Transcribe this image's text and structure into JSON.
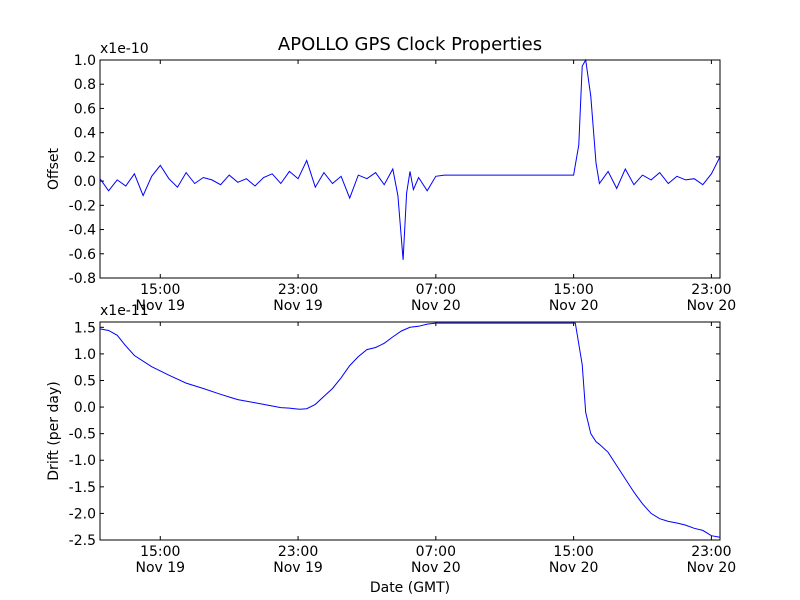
{
  "figure": {
    "title": "APOLLO GPS Clock Properties",
    "xlabel": "Date (GMT)"
  },
  "colors": {
    "line": "#0000ff",
    "axes": "#000000",
    "background": "#ffffff"
  },
  "chart_data": [
    {
      "type": "line",
      "title": "APOLLO GPS Clock Properties",
      "ylabel": "Offset",
      "multiplier": "x1e-10",
      "xlabel": "",
      "x_unit": "hours since Nov 19 11:30 GMT",
      "xlim": [
        0,
        36
      ],
      "ylim": [
        -0.8,
        1.0
      ],
      "grid": false,
      "x_ticks": [
        {
          "x": 3.5,
          "time": "15:00",
          "date": "Nov 19"
        },
        {
          "x": 11.5,
          "time": "23:00",
          "date": "Nov 19"
        },
        {
          "x": 19.5,
          "time": "07:00",
          "date": "Nov 20"
        },
        {
          "x": 27.5,
          "time": "15:00",
          "date": "Nov 20"
        },
        {
          "x": 35.5,
          "time": "23:00",
          "date": "Nov 20"
        }
      ],
      "y_ticks": [
        "1.0",
        "0.8",
        "0.6",
        "0.4",
        "0.2",
        "0.0",
        "-0.2",
        "-0.4",
        "-0.6",
        "-0.8"
      ],
      "y_tick_values": [
        1.0,
        0.8,
        0.6,
        0.4,
        0.2,
        0.0,
        -0.2,
        -0.4,
        -0.6,
        -0.8
      ],
      "series": [
        {
          "color": "#0000ff",
          "x": [
            0,
            0.5,
            1.0,
            1.5,
            2.0,
            2.5,
            3.0,
            3.5,
            4.0,
            4.5,
            5.0,
            5.5,
            6.0,
            6.5,
            7.0,
            7.5,
            8.0,
            8.5,
            9.0,
            9.5,
            10.0,
            10.5,
            11.0,
            11.5,
            12.0,
            12.5,
            13.0,
            13.5,
            14.0,
            14.5,
            15.0,
            15.5,
            16.0,
            16.5,
            17.0,
            17.3,
            17.6,
            17.8,
            18.0,
            18.2,
            18.5,
            19.0,
            19.5,
            20.0,
            20.3,
            20.5,
            21,
            22,
            23,
            24,
            25,
            26,
            27,
            27.5,
            27.8,
            28.0,
            28.2,
            28.5,
            28.8,
            29.0,
            29.5,
            30,
            30.5,
            31,
            31.5,
            32,
            32.5,
            33,
            33.5,
            34,
            34.5,
            35,
            35.5,
            36.0
          ],
          "y": [
            0.02,
            -0.08,
            0.01,
            -0.04,
            0.06,
            -0.12,
            0.04,
            0.13,
            0.02,
            -0.05,
            0.07,
            -0.02,
            0.03,
            0.01,
            -0.03,
            0.05,
            -0.01,
            0.02,
            -0.04,
            0.03,
            0.06,
            -0.02,
            0.08,
            0.02,
            0.17,
            -0.05,
            0.07,
            -0.02,
            0.04,
            -0.14,
            0.05,
            0.02,
            0.07,
            -0.03,
            0.1,
            -0.12,
            -0.65,
            -0.1,
            0.08,
            -0.07,
            0.03,
            -0.08,
            0.04,
            0.05,
            0.05,
            0.05,
            0.05,
            0.05,
            0.05,
            0.05,
            0.05,
            0.05,
            0.05,
            0.05,
            0.3,
            0.95,
            1.0,
            0.7,
            0.15,
            -0.02,
            0.08,
            -0.06,
            0.1,
            -0.03,
            0.05,
            0.01,
            0.07,
            -0.02,
            0.04,
            0.01,
            0.02,
            -0.03,
            0.06,
            0.2
          ]
        }
      ]
    },
    {
      "type": "line",
      "title": "",
      "ylabel": "Drift (per day)",
      "multiplier": "x1e-11",
      "xlabel": "Date (GMT)",
      "x_unit": "hours since Nov 19 11:30 GMT",
      "xlim": [
        0,
        36
      ],
      "ylim": [
        -2.5,
        1.6
      ],
      "grid": false,
      "x_ticks": [
        {
          "x": 3.5,
          "time": "15:00",
          "date": "Nov 19"
        },
        {
          "x": 11.5,
          "time": "23:00",
          "date": "Nov 19"
        },
        {
          "x": 19.5,
          "time": "07:00",
          "date": "Nov 20"
        },
        {
          "x": 27.5,
          "time": "15:00",
          "date": "Nov 20"
        },
        {
          "x": 35.5,
          "time": "23:00",
          "date": "Nov 20"
        }
      ],
      "y_ticks": [
        "1.5",
        "1.0",
        "0.5",
        "0.0",
        "-0.5",
        "-1.0",
        "-1.5",
        "-2.0",
        "-2.5"
      ],
      "y_tick_values": [
        1.5,
        1.0,
        0.5,
        0.0,
        -0.5,
        -1.0,
        -1.5,
        -2.0,
        -2.5
      ],
      "series": [
        {
          "color": "#0000ff",
          "x": [
            0,
            0.5,
            1.0,
            1.5,
            2.0,
            3.0,
            4.0,
            5.0,
            6.0,
            7.0,
            7.5,
            8.0,
            9.0,
            10.0,
            10.5,
            11.0,
            11.3,
            11.6,
            12.0,
            12.5,
            13.0,
            13.5,
            14.0,
            14.5,
            15.0,
            15.5,
            16.0,
            16.5,
            17.0,
            17.5,
            18.0,
            18.5,
            19.0,
            19.5,
            20.0,
            21,
            22,
            23,
            24,
            25,
            26,
            27,
            27.3,
            27.6,
            28.0,
            28.2,
            28.5,
            28.8,
            29.0,
            29.5,
            30,
            30.5,
            31,
            31.5,
            32,
            32.5,
            33,
            33.5,
            34,
            34.5,
            35,
            35.5,
            36
          ],
          "y": [
            1.47,
            1.44,
            1.35,
            1.15,
            0.97,
            0.76,
            0.6,
            0.45,
            0.35,
            0.24,
            0.19,
            0.14,
            0.08,
            0.02,
            -0.01,
            -0.02,
            -0.03,
            -0.04,
            -0.03,
            0.05,
            0.2,
            0.35,
            0.55,
            0.78,
            0.95,
            1.08,
            1.12,
            1.2,
            1.32,
            1.43,
            1.5,
            1.52,
            1.56,
            1.58,
            1.58,
            1.58,
            1.58,
            1.58,
            1.58,
            1.58,
            1.58,
            1.58,
            1.58,
            1.58,
            0.8,
            -0.1,
            -0.5,
            -0.65,
            -0.7,
            -0.85,
            -1.1,
            -1.35,
            -1.6,
            -1.82,
            -2.0,
            -2.1,
            -2.15,
            -2.18,
            -2.22,
            -2.28,
            -2.32,
            -2.42,
            -2.45
          ]
        }
      ]
    }
  ]
}
